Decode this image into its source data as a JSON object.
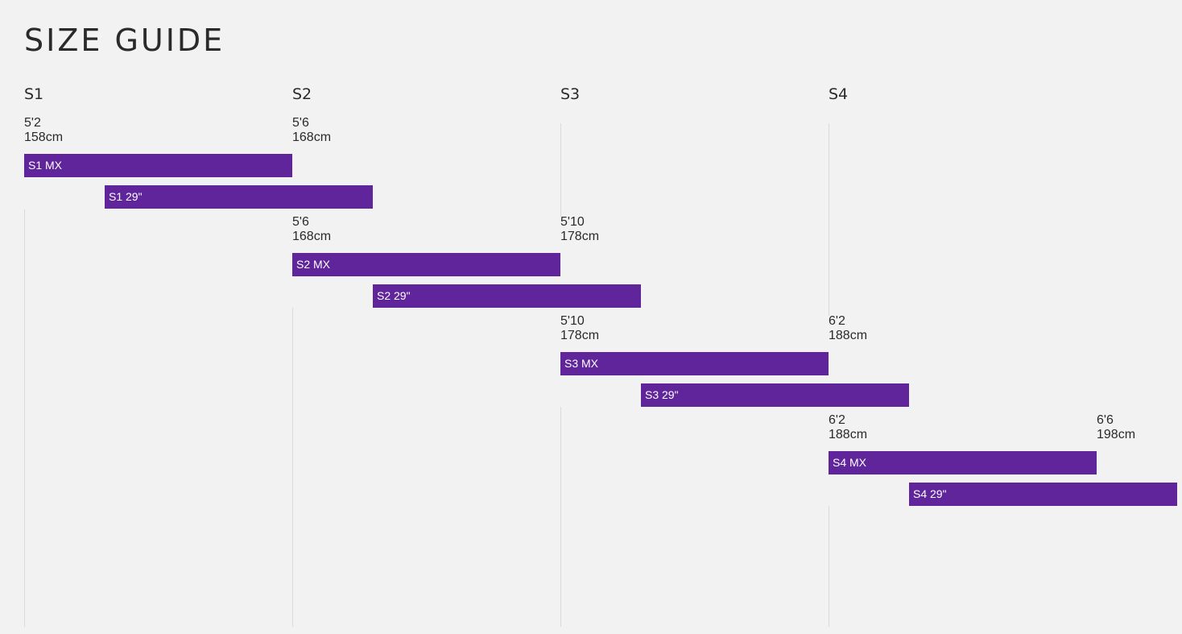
{
  "title": "SIZE GUIDE",
  "colors": {
    "bar": "#60259b",
    "bar_text": "#ffffff",
    "background": "#f2f2f2",
    "gridline": "#dadada"
  },
  "chart_data": {
    "type": "bar",
    "orientation": "horizontal-range",
    "title": "SIZE GUIDE",
    "columns": [
      "S1",
      "S2",
      "S3",
      "S4"
    ],
    "unit": "cm",
    "xlim": [
      158,
      198
    ],
    "grid": true,
    "groups": [
      {
        "name": "S1",
        "from": {
          "ft": "5'2",
          "cm": "158cm"
        },
        "to": {
          "ft": "5'6",
          "cm": "168cm"
        },
        "bars": [
          {
            "label": "S1 MX",
            "start": 158,
            "end": 168
          },
          {
            "label": "S1 29\"",
            "start": 161,
            "end": 171
          }
        ]
      },
      {
        "name": "S2",
        "from": {
          "ft": "5'6",
          "cm": "168cm"
        },
        "to": {
          "ft": "5'10",
          "cm": "178cm"
        },
        "bars": [
          {
            "label": "S2 MX",
            "start": 168,
            "end": 178
          },
          {
            "label": "S2 29\"",
            "start": 171,
            "end": 181
          }
        ]
      },
      {
        "name": "S3",
        "from": {
          "ft": "5'10",
          "cm": "178cm"
        },
        "to": {
          "ft": "6'2",
          "cm": "188cm"
        },
        "bars": [
          {
            "label": "S3 MX",
            "start": 178,
            "end": 188
          },
          {
            "label": "S3 29\"",
            "start": 181,
            "end": 191
          }
        ]
      },
      {
        "name": "S4",
        "from": {
          "ft": "6'2",
          "cm": "188cm"
        },
        "to": {
          "ft": "6'6",
          "cm": "198cm"
        },
        "bars": [
          {
            "label": "S4 MX",
            "start": 188,
            "end": 198
          },
          {
            "label": "S4 29\"",
            "start": 191,
            "end": 201
          }
        ]
      }
    ]
  }
}
